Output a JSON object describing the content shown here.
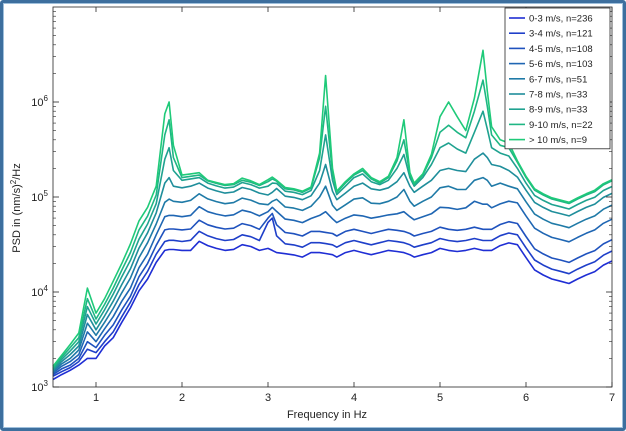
{
  "chart_data": {
    "type": "line",
    "title": "",
    "xlabel": "Frequency in Hz",
    "ylabel": "PSD in (nm/s)",
    "ylabel_superscript": "2",
    "ylabel_suffix": "/Hz",
    "xlim": [
      0.5,
      7
    ],
    "ylim": [
      1000,
      10000000
    ],
    "yscale": "log",
    "grid": false,
    "legend_position": "top-right",
    "x_ticks": [
      {
        "value": 1,
        "label": "1"
      },
      {
        "value": 2,
        "label": "2"
      },
      {
        "value": 3,
        "label": "3"
      },
      {
        "value": 4,
        "label": "4"
      },
      {
        "value": 5,
        "label": "5"
      },
      {
        "value": 6,
        "label": "6"
      },
      {
        "value": 7,
        "label": "7"
      }
    ],
    "y_ticks": [
      {
        "value": 1000,
        "base": "10",
        "exp": "3"
      },
      {
        "value": 10000,
        "base": "10",
        "exp": "4"
      },
      {
        "value": 100000,
        "base": "10",
        "exp": "5"
      },
      {
        "value": 1000000,
        "base": "10",
        "exp": "6"
      }
    ],
    "x": [
      0.5,
      0.6,
      0.7,
      0.8,
      0.9,
      1.0,
      1.1,
      1.2,
      1.3,
      1.4,
      1.5,
      1.6,
      1.7,
      1.8,
      1.85,
      1.9,
      2.0,
      2.1,
      2.2,
      2.3,
      2.4,
      2.5,
      2.6,
      2.7,
      2.8,
      2.9,
      3.0,
      3.05,
      3.1,
      3.2,
      3.3,
      3.4,
      3.5,
      3.6,
      3.67,
      3.75,
      3.8,
      3.9,
      4.0,
      4.1,
      4.2,
      4.3,
      4.4,
      4.5,
      4.58,
      4.65,
      4.7,
      4.8,
      4.9,
      5.0,
      5.1,
      5.2,
      5.3,
      5.4,
      5.5,
      5.55,
      5.6,
      5.7,
      5.8,
      5.9,
      6.0,
      6.1,
      6.2,
      6.3,
      6.4,
      6.5,
      6.6,
      6.7,
      6.8,
      6.9,
      7.0
    ],
    "series": [
      {
        "name": "0-3 m/s, n=236",
        "color": "#1f2ed4",
        "values": [
          1200,
          1350,
          1500,
          1700,
          2000,
          2000,
          2700,
          3300,
          4800,
          6800,
          10300,
          13700,
          20500,
          27400,
          28000,
          28000,
          27400,
          27400,
          34200,
          30800,
          28800,
          27400,
          28100,
          31500,
          30100,
          27400,
          28800,
          27400,
          26000,
          25300,
          24600,
          23300,
          26000,
          26000,
          25400,
          24700,
          23300,
          26000,
          27400,
          26000,
          24700,
          26000,
          27400,
          26700,
          26000,
          24700,
          23300,
          24700,
          26000,
          28800,
          27400,
          26700,
          27400,
          28800,
          27400,
          27400,
          27400,
          30800,
          32900,
          31500,
          23000,
          17100,
          15100,
          13700,
          13000,
          12300,
          13700,
          15100,
          16400,
          19200,
          21200
        ]
      },
      {
        "name": "3-4 m/s, n=121",
        "color": "#1f3fc9",
        "values": [
          1300,
          1450,
          1600,
          1850,
          2500,
          2300,
          3000,
          3800,
          5500,
          7800,
          12000,
          16500,
          25000,
          34000,
          35000,
          35000,
          34000,
          35000,
          43500,
          39000,
          36500,
          34800,
          35700,
          40000,
          38200,
          34800,
          54000,
          60000,
          39000,
          32200,
          31300,
          29600,
          33000,
          33000,
          32300,
          31400,
          29600,
          33000,
          34800,
          33000,
          31400,
          33000,
          34800,
          33900,
          33000,
          31400,
          29600,
          31400,
          33000,
          36600,
          34800,
          33900,
          34800,
          36600,
          34800,
          34800,
          34800,
          39100,
          41800,
          40000,
          29200,
          21700,
          19200,
          17400,
          16500,
          15600,
          17400,
          19200,
          20800,
          24400,
          27000
        ]
      },
      {
        "name": "4-5 m/s, n=108",
        "color": "#1f52be",
        "values": [
          1350,
          1550,
          1700,
          2000,
          3000,
          2600,
          3500,
          4500,
          6500,
          9000,
          14500,
          20000,
          31000,
          45000,
          46000,
          46000,
          45000,
          46000,
          57000,
          51000,
          48000,
          46000,
          47000,
          52500,
          50000,
          45700,
          60000,
          67000,
          51000,
          42300,
          41100,
          38900,
          43400,
          43400,
          42400,
          41300,
          38900,
          43400,
          45700,
          43400,
          41300,
          43400,
          45700,
          44600,
          43400,
          41300,
          38900,
          41300,
          43400,
          48100,
          45700,
          44600,
          45700,
          48100,
          45700,
          45700,
          45700,
          51400,
          54900,
          52600,
          38400,
          28500,
          25200,
          22800,
          21700,
          20500,
          22800,
          25200,
          27300,
          32100,
          35500
        ]
      },
      {
        "name": "5-6 m/s, n=103",
        "color": "#1f66b3",
        "values": [
          1400,
          1650,
          1850,
          2200,
          3800,
          3000,
          4100,
          5500,
          8000,
          11000,
          18000,
          25000,
          40000,
          62000,
          64000,
          64000,
          62000,
          64000,
          79000,
          70000,
          66000,
          63300,
          65000,
          72600,
          69100,
          63300,
          70000,
          78000,
          70500,
          58500,
          56900,
          53800,
          59400,
          64000,
          70000,
          59000,
          53800,
          59800,
          64800,
          63300,
          59800,
          62000,
          64800,
          66500,
          70000,
          62000,
          57500,
          62000,
          66500,
          78000,
          77000,
          74000,
          77000,
          90000,
          84000,
          84000,
          77000,
          84600,
          90300,
          86600,
          63200,
          46900,
          41500,
          37600,
          35700,
          33800,
          37600,
          41500,
          45000,
          52900,
          58400
        ]
      },
      {
        "name": "6-7 m/s, n=51",
        "color": "#1f7aa7",
        "values": [
          1450,
          1750,
          2000,
          2450,
          4700,
          3500,
          4800,
          6700,
          9800,
          14000,
          23000,
          33000,
          52000,
          88000,
          95000,
          90000,
          88000,
          92000,
          108000,
          95600,
          89400,
          85000,
          87300,
          97400,
          92800,
          85000,
          83000,
          90000,
          94600,
          78500,
          76400,
          72200,
          79800,
          100000,
          130000,
          82000,
          72200,
          82700,
          95000,
          98000,
          86000,
          85000,
          90000,
          100000,
          120000,
          90000,
          80000,
          90000,
          100000,
          125000,
          130000,
          120000,
          120000,
          150000,
          160000,
          150000,
          130000,
          140000,
          130000,
          122000,
          89000,
          66000,
          58400,
          52900,
          50200,
          47500,
          52900,
          58400,
          63300,
          74400,
          82200
        ]
      },
      {
        "name": "7-8 m/s, n=33",
        "color": "#1f8e9b",
        "values": [
          1500,
          1850,
          2200,
          2700,
          5800,
          4000,
          5600,
          8000,
          12000,
          17500,
          29000,
          42000,
          68000,
          140000,
          160000,
          130000,
          125000,
          130000,
          140000,
          124000,
          116000,
          110000,
          113000,
          126000,
          120000,
          110000,
          105000,
          112000,
          123000,
          102000,
          99000,
          93600,
          103000,
          140000,
          220000,
          115000,
          93600,
          110000,
          130000,
          140000,
          122000,
          118000,
          125000,
          145000,
          180000,
          130000,
          112000,
          130000,
          150000,
          190000,
          200000,
          190000,
          185000,
          250000,
          290000,
          260000,
          220000,
          210000,
          190000,
          162000,
          118000,
          87800,
          77700,
          70400,
          66800,
          63200,
          70400,
          77700,
          84200,
          99000,
          109000
        ]
      },
      {
        "name": "8-9 m/s, n=33",
        "color": "#1fa290",
        "values": [
          1550,
          1950,
          2400,
          3000,
          7000,
          4600,
          6500,
          9500,
          14500,
          21500,
          36000,
          52000,
          85000,
          250000,
          330000,
          190000,
          150000,
          155000,
          160000,
          140000,
          131000,
          124000,
          127000,
          142000,
          135000,
          124000,
          130000,
          140000,
          139000,
          115000,
          112000,
          106000,
          117000,
          190000,
          450000,
          150000,
          106000,
          130000,
          160000,
          175000,
          145000,
          135000,
          150000,
          200000,
          280000,
          160000,
          130000,
          160000,
          220000,
          330000,
          370000,
          320000,
          290000,
          480000,
          800000,
          520000,
          330000,
          290000,
          270000,
          200000,
          140000,
          104000,
          92000,
          83300,
          79000,
          74800,
          83300,
          92000,
          99600,
          117000,
          129000
        ]
      },
      {
        "name": "9-10 m/s, n=22",
        "color": "#1fb684",
        "values": [
          1600,
          2050,
          2600,
          3300,
          8500,
          5200,
          7400,
          11000,
          17000,
          26000,
          45000,
          63000,
          105000,
          450000,
          650000,
          260000,
          160000,
          165000,
          170000,
          148000,
          139000,
          132000,
          135000,
          150000,
          143000,
          132000,
          145000,
          155000,
          147000,
          122000,
          119000,
          112000,
          124000,
          260000,
          900000,
          180000,
          112000,
          140000,
          170000,
          190000,
          155000,
          140000,
          160000,
          240000,
          400000,
          175000,
          135000,
          170000,
          260000,
          480000,
          570000,
          480000,
          420000,
          800000,
          1700000,
          900000,
          450000,
          350000,
          330000,
          232000,
          160000,
          118000,
          105000,
          95200,
          90300,
          85400,
          95200,
          105000,
          114000,
          134000,
          148000
        ]
      },
      {
        "name": "> 10 m/s, n=9",
        "color": "#1fca79",
        "values": [
          1650,
          2150,
          2800,
          3700,
          11000,
          6000,
          8500,
          13000,
          20000,
          32000,
          56000,
          78000,
          130000,
          750000,
          1000000,
          350000,
          170000,
          175000,
          180000,
          150000,
          142000,
          135000,
          138000,
          158000,
          148000,
          135000,
          152000,
          162000,
          150000,
          126000,
          122000,
          115000,
          127000,
          290000,
          1900000,
          200000,
          115000,
          145000,
          175000,
          200000,
          160000,
          145000,
          165000,
          260000,
          650000,
          180000,
          140000,
          175000,
          280000,
          700000,
          1000000,
          700000,
          500000,
          1100000,
          3500000,
          1300000,
          550000,
          400000,
          370000,
          240000,
          165000,
          122000,
          108000,
          98000,
          93000,
          88000,
          98000,
          108000,
          118000,
          138000,
          152000
        ]
      }
    ]
  }
}
